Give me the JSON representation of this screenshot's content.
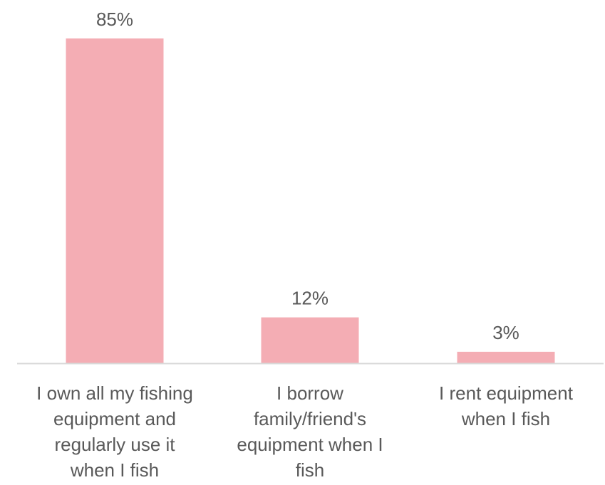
{
  "chart_data": {
    "type": "bar",
    "categories": [
      [
        "I own all my fishing",
        "equipment and",
        "regularly use it",
        "when I fish"
      ],
      [
        "I borrow",
        "family/friend's",
        "equipment when I",
        "fish"
      ],
      [
        "I rent equipment",
        "when I fish"
      ]
    ],
    "values": [
      85,
      12,
      3
    ],
    "data_labels": [
      "85%",
      "12%",
      "3%"
    ],
    "title": "",
    "xlabel": "",
    "ylabel": "",
    "ylim": [
      0,
      85
    ],
    "grid": false,
    "legend": "none",
    "colors": {
      "bar": "#f4adb4",
      "axis": "#d9d9d9",
      "text": "#595959"
    }
  }
}
